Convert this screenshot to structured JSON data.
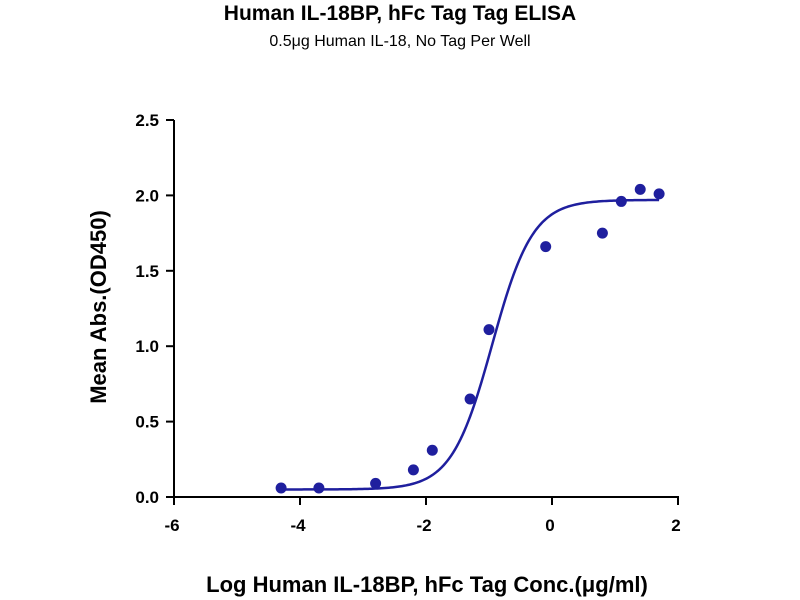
{
  "chart_data": {
    "type": "scatter",
    "title": "Human IL-18BP, hFc Tag Tag ELISA",
    "subtitle": "0.5μg Human IL-18, No Tag Per Well",
    "xlabel": "Log Human IL-18BP, hFc Tag Conc.(μg/ml)",
    "ylabel": "Mean Abs.(OD450)",
    "xlim": [
      -6,
      2
    ],
    "ylim": [
      0,
      2.5
    ],
    "xticks": [
      -6,
      -4,
      -2,
      0,
      2
    ],
    "yticks": [
      0.0,
      0.5,
      1.0,
      1.5,
      2.0,
      2.5
    ],
    "xtick_labels": [
      "-6",
      "-4",
      "-2",
      "0",
      "2"
    ],
    "ytick_labels": [
      "0.0",
      "0.5",
      "1.0",
      "1.5",
      "2.0",
      "2.5"
    ],
    "grid": false,
    "legend": "none",
    "color": "#1f1f9e",
    "series": [
      {
        "x": [
          -4.3,
          -3.7,
          -2.8,
          -2.2,
          -1.9,
          -1.3,
          -1.0,
          -0.1,
          0.8,
          1.1,
          1.4,
          1.7
        ],
        "y": [
          0.06,
          0.06,
          0.09,
          0.18,
          0.31,
          0.65,
          1.11,
          1.66,
          1.75,
          1.96,
          2.04,
          2.01
        ]
      }
    ],
    "fit_curve": {
      "model": "4PL",
      "bottom": 0.05,
      "top": 1.97,
      "logEC50": -0.95,
      "hill": 1.35,
      "x_range": [
        -4.3,
        1.7
      ]
    }
  }
}
